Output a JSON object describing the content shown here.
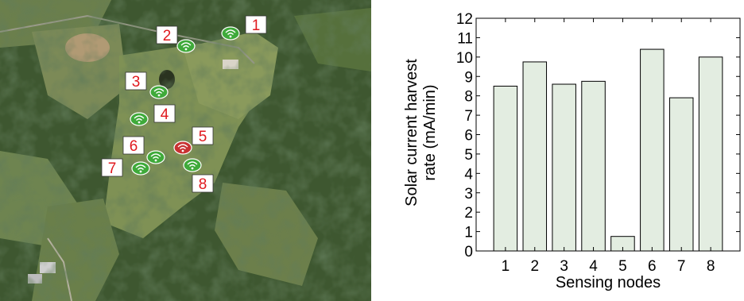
{
  "map": {
    "nodes": [
      {
        "label": "1",
        "status": "ok"
      },
      {
        "label": "2",
        "status": "ok"
      },
      {
        "label": "3",
        "status": "ok"
      },
      {
        "label": "4",
        "status": "ok"
      },
      {
        "label": "5",
        "status": "faulty"
      },
      {
        "label": "6",
        "status": "ok"
      },
      {
        "label": "7",
        "status": "ok"
      },
      {
        "label": "8",
        "status": "ok"
      }
    ],
    "colors": {
      "ok": "#3faa3a",
      "faulty": "#c83232",
      "label_text": "#e0191e"
    }
  },
  "chart_data": {
    "type": "bar",
    "title": "",
    "xlabel": "Sensing nodes",
    "ylabel_lines": [
      "Solar current harvest",
      "rate (mA/min)"
    ],
    "categories": [
      "1",
      "2",
      "3",
      "4",
      "5",
      "6",
      "7",
      "8"
    ],
    "values": [
      8.5,
      9.75,
      8.6,
      8.75,
      0.75,
      10.4,
      7.9,
      10.0
    ],
    "ylim": [
      0,
      12
    ],
    "yticks": [
      0,
      1,
      2,
      3,
      4,
      5,
      6,
      7,
      8,
      9,
      10,
      11,
      12
    ],
    "grid": false,
    "bar_color": "#e3ede1"
  }
}
